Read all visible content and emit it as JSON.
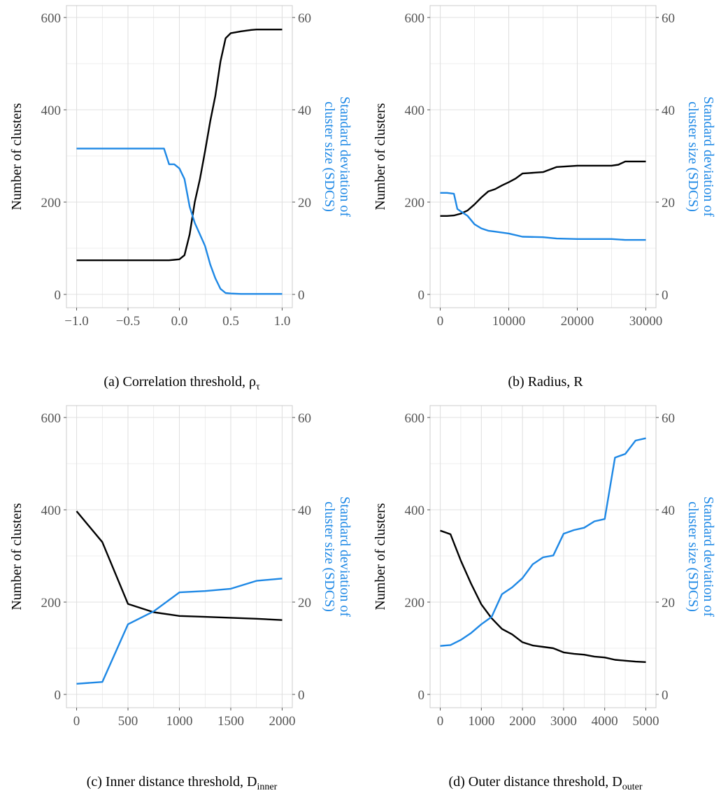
{
  "colors": {
    "left_series": "#000000",
    "right_series": "#1e88e5",
    "grid": "#e0e0e0"
  },
  "chart_data": [
    {
      "type": "line",
      "caption": {
        "prefix": "(a) Correlation threshold, ",
        "symbol": "ρ",
        "sub": "τ"
      },
      "ylabel_left": "Number of clusters",
      "ylabel_right": [
        "Standard deviation of",
        "cluster size (SDCS)"
      ],
      "xlim": [
        -1.0,
        1.0
      ],
      "ylim_left": [
        0,
        600
      ],
      "ylim_right": [
        0,
        60
      ],
      "x_ticks": [
        -1.0,
        -0.5,
        0.0,
        0.5,
        1.0
      ],
      "x_tick_labels": [
        "−1.0",
        "−0.5",
        "0.0",
        "0.5",
        "1.0"
      ],
      "y_left_ticks": [
        0,
        200,
        400,
        600
      ],
      "y_left_tick_labels": [
        "0",
        "200",
        "400",
        "600"
      ],
      "y_right_ticks": [
        0,
        20,
        40,
        60
      ],
      "y_right_tick_labels": [
        "0",
        "20",
        "40",
        "60"
      ],
      "grid": true,
      "series": [
        {
          "axis": "left",
          "x": [
            -1.0,
            -0.5,
            -0.15,
            -0.1,
            -0.05,
            0.0,
            0.05,
            0.1,
            0.15,
            0.2,
            0.25,
            0.3,
            0.35,
            0.4,
            0.45,
            0.5,
            0.6,
            0.7,
            0.75,
            0.8,
            0.9,
            1.0
          ],
          "values": [
            74,
            74,
            74,
            74,
            75,
            76,
            85,
            130,
            200,
            250,
            310,
            375,
            430,
            505,
            555,
            566,
            570,
            573,
            574,
            574,
            574,
            574
          ]
        },
        {
          "axis": "right",
          "x": [
            -1.0,
            -0.5,
            -0.15,
            -0.1,
            -0.05,
            0.0,
            0.05,
            0.1,
            0.15,
            0.2,
            0.25,
            0.3,
            0.35,
            0.4,
            0.45,
            0.5,
            0.6,
            0.7,
            0.8,
            1.0
          ],
          "values": [
            31.6,
            31.6,
            31.6,
            28.2,
            28.2,
            27.3,
            25,
            19,
            15.5,
            13,
            10.5,
            6.5,
            3.5,
            1.2,
            0.3,
            0.2,
            0.1,
            0.1,
            0.1,
            0.1
          ]
        }
      ]
    },
    {
      "type": "line",
      "caption": {
        "prefix": "(b) Radius, R",
        "symbol": "",
        "sub": ""
      },
      "ylabel_left": "Number of clusters",
      "ylabel_right": [
        "Standard deviation of",
        "cluster size (SDCS)"
      ],
      "xlim": [
        0,
        30000
      ],
      "ylim_left": [
        0,
        600
      ],
      "ylim_right": [
        0,
        60
      ],
      "x_ticks": [
        0,
        10000,
        20000,
        30000
      ],
      "x_tick_labels": [
        "0",
        "10000",
        "20000",
        "30000"
      ],
      "y_left_ticks": [
        0,
        200,
        400,
        600
      ],
      "y_left_tick_labels": [
        "0",
        "200",
        "400",
        "600"
      ],
      "y_right_ticks": [
        0,
        20,
        40,
        60
      ],
      "y_right_tick_labels": [
        "0",
        "20",
        "40",
        "60"
      ],
      "grid": true,
      "series": [
        {
          "axis": "left",
          "x": [
            0,
            1000,
            2000,
            3000,
            4000,
            5000,
            6000,
            7000,
            8000,
            9000,
            10000,
            11000,
            12000,
            13000,
            15000,
            17000,
            20000,
            22500,
            25000,
            26000,
            27000,
            28000,
            30000
          ],
          "values": [
            170,
            170,
            171,
            175,
            182,
            195,
            210,
            223,
            228,
            236,
            243,
            251,
            262,
            263,
            265,
            276,
            279,
            279,
            279,
            281,
            288,
            288,
            288
          ]
        },
        {
          "axis": "right",
          "x": [
            0,
            1000,
            2000,
            2500,
            3000,
            4000,
            5000,
            6000,
            7000,
            8000,
            10000,
            12000,
            15000,
            17000,
            20000,
            25000,
            27000,
            30000
          ],
          "values": [
            22,
            22,
            21.8,
            18.5,
            18,
            17,
            15.2,
            14.3,
            13.8,
            13.6,
            13.2,
            12.5,
            12.4,
            12.1,
            12.0,
            12.0,
            11.8,
            11.8
          ]
        }
      ]
    },
    {
      "type": "line",
      "caption": {
        "prefix": "(c) Inner distance threshold, D",
        "symbol": "",
        "sub": "inner"
      },
      "ylabel_left": "Number of clusters",
      "ylabel_right": [
        "Standard deviation of",
        "cluster size (SDCS)"
      ],
      "xlim": [
        0,
        2000
      ],
      "ylim_left": [
        0,
        600
      ],
      "ylim_right": [
        0,
        60
      ],
      "x_ticks": [
        0,
        500,
        1000,
        1500,
        2000
      ],
      "x_tick_labels": [
        "0",
        "500",
        "1000",
        "1500",
        "2000"
      ],
      "y_left_ticks": [
        0,
        200,
        400,
        600
      ],
      "y_left_tick_labels": [
        "0",
        "200",
        "400",
        "600"
      ],
      "y_right_ticks": [
        0,
        20,
        40,
        60
      ],
      "y_right_tick_labels": [
        "0",
        "20",
        "40",
        "60"
      ],
      "grid": true,
      "series": [
        {
          "axis": "left",
          "x": [
            0,
            250,
            500,
            750,
            1000,
            1250,
            1500,
            1750,
            2000
          ],
          "values": [
            397,
            330,
            196,
            178,
            170,
            168,
            166,
            164,
            161
          ]
        },
        {
          "axis": "right",
          "x": [
            0,
            250,
            500,
            750,
            1000,
            1250,
            1500,
            1750,
            2000
          ],
          "values": [
            2.3,
            2.7,
            15.2,
            18.0,
            22.1,
            22.4,
            22.9,
            24.6,
            25.1
          ]
        }
      ]
    },
    {
      "type": "line",
      "caption": {
        "prefix": "(d) Outer distance threshold, D",
        "symbol": "",
        "sub": "outer"
      },
      "ylabel_left": "Number of clusters",
      "ylabel_right": [
        "Standard deviation of",
        "cluster size (SDCS)"
      ],
      "xlim": [
        0,
        5000
      ],
      "ylim_left": [
        0,
        600
      ],
      "ylim_right": [
        0,
        60
      ],
      "x_ticks": [
        0,
        1000,
        2000,
        3000,
        4000,
        5000
      ],
      "x_tick_labels": [
        "0",
        "1000",
        "2000",
        "3000",
        "4000",
        "5000"
      ],
      "y_left_ticks": [
        0,
        200,
        400,
        600
      ],
      "y_left_tick_labels": [
        "0",
        "200",
        "400",
        "600"
      ],
      "y_right_ticks": [
        0,
        20,
        40,
        60
      ],
      "y_right_tick_labels": [
        "0",
        "20",
        "40",
        "60"
      ],
      "grid": true,
      "series": [
        {
          "axis": "left",
          "x": [
            0,
            250,
            500,
            750,
            1000,
            1250,
            1500,
            1750,
            2000,
            2250,
            2500,
            2750,
            3000,
            3250,
            3500,
            3750,
            4000,
            4250,
            4500,
            4750,
            5000
          ],
          "values": [
            355,
            347,
            290,
            240,
            195,
            165,
            142,
            130,
            113,
            106,
            103,
            100,
            91,
            88,
            86,
            82,
            80,
            75,
            73,
            71,
            70
          ]
        },
        {
          "axis": "right",
          "x": [
            0,
            250,
            500,
            750,
            1000,
            1250,
            1500,
            1750,
            2000,
            2250,
            2500,
            2750,
            3000,
            3250,
            3500,
            3750,
            4000,
            4250,
            4500,
            4750,
            5000
          ],
          "values": [
            10.5,
            10.7,
            11.8,
            13.3,
            15.2,
            16.8,
            21.7,
            23.2,
            25.2,
            28.2,
            29.7,
            30.1,
            34.8,
            35.6,
            36.1,
            37.5,
            38.0,
            51.3,
            52.1,
            55.0,
            55.5
          ]
        }
      ]
    }
  ]
}
